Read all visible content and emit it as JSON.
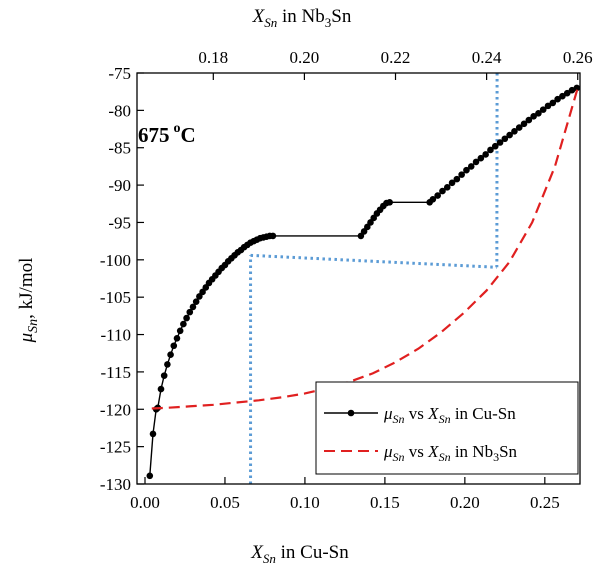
{
  "chart_data": {
    "type": "line",
    "annotation": {
      "text": "675",
      "sup": "o",
      "unit": "C"
    },
    "xlabel_bottom": {
      "sym": "X",
      "sub": "Sn",
      "rest": " in Cu-Sn"
    },
    "xlabel_top": {
      "sym": "X",
      "sub": "Sn",
      "rest_pre": " in Nb",
      "rest_sub": "3",
      "rest_post": "Sn"
    },
    "ylabel": {
      "sym": "μ",
      "sub": "Sn",
      "rest": ", kJ/mol"
    },
    "xlim_bottom": [
      -0.005,
      0.272
    ],
    "xlim_top": [
      0.16325,
      0.2605
    ],
    "ylim": [
      -130,
      -75
    ],
    "xticks_bottom": [
      0.0,
      0.05,
      0.1,
      0.15,
      0.2,
      0.25
    ],
    "xtick_labels_bottom": [
      "0.00",
      "0.05",
      "0.10",
      "0.15",
      "0.20",
      "0.25"
    ],
    "xticks_top": [
      0.18,
      0.2,
      0.22,
      0.24,
      0.26
    ],
    "xtick_labels_top": [
      "0.18",
      "0.20",
      "0.22",
      "0.24",
      "0.26"
    ],
    "yticks": [
      -130,
      -125,
      -120,
      -115,
      -110,
      -105,
      -100,
      -95,
      -90,
      -85,
      -80,
      -75
    ],
    "ytick_labels": [
      "-130",
      "-125",
      "-120",
      "-115",
      "-110",
      "-105",
      "-100",
      "-95",
      "-90",
      "-85",
      "-80",
      "-75"
    ],
    "legend_position": "bottom-right",
    "series": [
      {
        "name": {
          "sym": "μ",
          "sub": "Sn",
          "mid": " vs ",
          "sym2": "X",
          "sub2": "Sn",
          "tail_pre": " in Cu-Sn",
          "tail_sub": "",
          "tail_post": ""
        },
        "style": "line-markers",
        "color": "#000000",
        "axis": "bottom",
        "x": [
          0.003,
          0.005,
          0.007,
          0.008,
          0.01,
          0.012,
          0.014,
          0.016,
          0.018,
          0.02,
          0.022,
          0.024,
          0.026,
          0.028,
          0.03,
          0.032,
          0.034,
          0.036,
          0.038,
          0.04,
          0.042,
          0.044,
          0.046,
          0.048,
          0.05,
          0.052,
          0.054,
          0.056,
          0.058,
          0.06,
          0.062,
          0.064,
          0.066,
          0.068,
          0.07,
          0.072,
          0.074,
          0.076,
          0.078,
          0.08,
          0.135,
          0.137,
          0.139,
          0.141,
          0.143,
          0.145,
          0.147,
          0.149,
          0.151,
          0.153,
          0.178,
          0.18,
          0.183,
          0.186,
          0.189,
          0.192,
          0.195,
          0.198,
          0.201,
          0.204,
          0.207,
          0.21,
          0.213,
          0.216,
          0.219,
          0.222,
          0.225,
          0.228,
          0.231,
          0.234,
          0.237,
          0.24,
          0.243,
          0.246,
          0.249,
          0.252,
          0.255,
          0.258,
          0.261,
          0.264,
          0.267,
          0.27
        ],
        "y": [
          -128.9,
          -123.3,
          -120.0,
          -119.8,
          -117.3,
          -115.5,
          -114.0,
          -112.7,
          -111.5,
          -110.5,
          -109.5,
          -108.6,
          -107.8,
          -107.0,
          -106.3,
          -105.6,
          -104.9,
          -104.3,
          -103.7,
          -103.1,
          -102.6,
          -102.1,
          -101.6,
          -101.1,
          -100.7,
          -100.2,
          -99.8,
          -99.4,
          -99.0,
          -98.7,
          -98.3,
          -98.0,
          -97.7,
          -97.5,
          -97.3,
          -97.1,
          -97.0,
          -96.9,
          -96.8,
          -96.8,
          -96.8,
          -96.2,
          -95.6,
          -95.0,
          -94.4,
          -93.8,
          -93.3,
          -92.8,
          -92.4,
          -92.3,
          -92.3,
          -91.9,
          -91.4,
          -90.8,
          -90.3,
          -89.7,
          -89.2,
          -88.6,
          -88.0,
          -87.5,
          -86.9,
          -86.4,
          -85.9,
          -85.3,
          -84.8,
          -84.3,
          -83.8,
          -83.3,
          -82.8,
          -82.3,
          -81.8,
          -81.3,
          -80.8,
          -80.4,
          -79.9,
          -79.4,
          -79.0,
          -78.5,
          -78.1,
          -77.7,
          -77.3,
          -77.0
        ]
      },
      {
        "name": {
          "sym": "μ",
          "sub": "Sn",
          "mid": " vs ",
          "sym2": "X",
          "sub2": "Sn",
          "tail_pre": " in Nb",
          "tail_sub": "3",
          "tail_post": "Sn"
        },
        "style": "dashed",
        "color": "#e02020",
        "axis": "top",
        "x": [
          0.1665,
          0.17,
          0.175,
          0.18,
          0.185,
          0.19,
          0.195,
          0.2,
          0.205,
          0.21,
          0.215,
          0.22,
          0.225,
          0.23,
          0.235,
          0.24,
          0.245,
          0.25,
          0.255,
          0.26
        ],
        "y": [
          -119.9,
          -119.8,
          -119.6,
          -119.4,
          -119.1,
          -118.8,
          -118.4,
          -117.9,
          -117.2,
          -116.3,
          -115.2,
          -113.7,
          -111.9,
          -109.7,
          -107.1,
          -104.1,
          -100.3,
          -95.0,
          -87.5,
          -77.0
        ]
      }
    ],
    "guides": {
      "color": "#5b9bd5",
      "vertical_bottom_x": 0.066,
      "vertical_top_x": 0.2423,
      "tangent_from": [
        0.066,
        -99.4
      ],
      "tangent_to": [
        0.22,
        -101.0
      ]
    }
  }
}
